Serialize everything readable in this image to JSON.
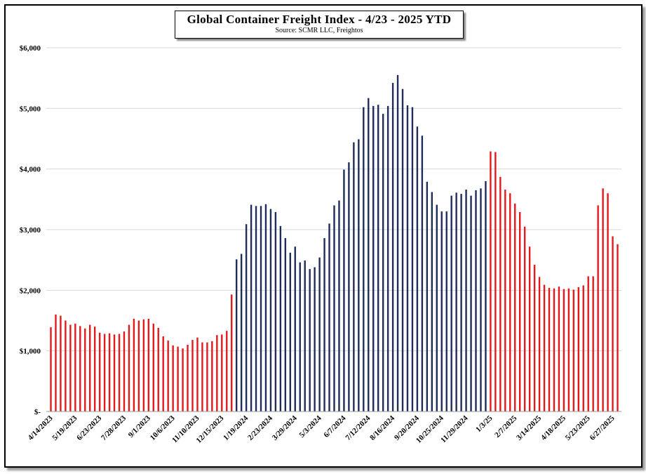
{
  "chart_data": {
    "type": "bar",
    "title": "Global Container Freight Index - 4/23 - 2025 YTD",
    "subtitle": "Source: SCMR LLC, Freightos",
    "xlabel": "",
    "ylabel": "",
    "ylim": [
      0,
      6000
    ],
    "yticks": [
      {
        "value": 0,
        "label": "$-"
      },
      {
        "value": 1000,
        "label": "$1,000"
      },
      {
        "value": 2000,
        "label": "$2,000"
      },
      {
        "value": 3000,
        "label": "$3,000"
      },
      {
        "value": 4000,
        "label": "$4,000"
      },
      {
        "value": 5000,
        "label": "$5,000"
      },
      {
        "value": 6000,
        "label": "$6,000"
      }
    ],
    "grid": true,
    "colors": {
      "2023": "#e31a1c",
      "2024": "#1f2d5a",
      "2025": "#e31a1c"
    },
    "xtick_labels": [
      {
        "label": "4/14/2023",
        "index": 0
      },
      {
        "label": "5/19/2023",
        "index": 5
      },
      {
        "label": "6/23/2023",
        "index": 10
      },
      {
        "label": "7/28/2023",
        "index": 15
      },
      {
        "label": "9/1/2023",
        "index": 20
      },
      {
        "label": "10/6/2023",
        "index": 25
      },
      {
        "label": "11/10/2023",
        "index": 30
      },
      {
        "label": "12/15/2023",
        "index": 35
      },
      {
        "label": "1/19/2024",
        "index": 40
      },
      {
        "label": "2/23/2024",
        "index": 45
      },
      {
        "label": "3/29/2024",
        "index": 50
      },
      {
        "label": "5/3/2024",
        "index": 55
      },
      {
        "label": "6/7/2024",
        "index": 60
      },
      {
        "label": "7/12/2024",
        "index": 65
      },
      {
        "label": "8/16/2024",
        "index": 70
      },
      {
        "label": "9/20/2024",
        "index": 75
      },
      {
        "label": "10/25/2024",
        "index": 80
      },
      {
        "label": "11/29/2024",
        "index": 85
      },
      {
        "label": "1/3/25",
        "index": 90
      },
      {
        "label": "2/7/2025",
        "index": 95
      },
      {
        "label": "3/14/2025",
        "index": 100
      },
      {
        "label": "4/18/2025",
        "index": 105
      },
      {
        "label": "5/23/2025",
        "index": 110
      },
      {
        "label": "6/27/2025",
        "index": 115
      }
    ],
    "series": [
      {
        "name": "2023",
        "start_index": 0,
        "values": [
          1390,
          1600,
          1580,
          1500,
          1430,
          1450,
          1410,
          1370,
          1430,
          1400,
          1300,
          1280,
          1290,
          1270,
          1280,
          1320,
          1430,
          1530,
          1500,
          1520,
          1530,
          1450,
          1380,
          1240,
          1170,
          1090,
          1070,
          1040,
          1100,
          1180,
          1220,
          1140,
          1140,
          1160,
          1260,
          1270,
          1330,
          1930
        ]
      },
      {
        "name": "2024",
        "start_index": 38,
        "values": [
          2510,
          2600,
          3090,
          3410,
          3390,
          3390,
          3420,
          3340,
          3290,
          3060,
          2860,
          2620,
          2720,
          2460,
          2490,
          2350,
          2380,
          2540,
          2860,
          3100,
          3400,
          3480,
          3990,
          4110,
          4440,
          4490,
          5020,
          5170,
          5040,
          5060,
          4910,
          5040,
          5420,
          5550,
          5320,
          5050,
          5020,
          4700,
          4550,
          3790,
          3620,
          3410,
          3300,
          3300,
          3560,
          3610,
          3590,
          3660,
          3560,
          3650,
          3680,
          3800
        ]
      },
      {
        "name": "2025",
        "start_index": 90,
        "values": [
          4290,
          4280,
          3870,
          3660,
          3600,
          3430,
          3290,
          3050,
          2720,
          2420,
          2220,
          2090,
          2040,
          2030,
          2060,
          2020,
          2030,
          2010,
          2050,
          2080,
          2230,
          2230,
          3400,
          3680,
          3600,
          2890,
          2760
        ]
      }
    ]
  }
}
